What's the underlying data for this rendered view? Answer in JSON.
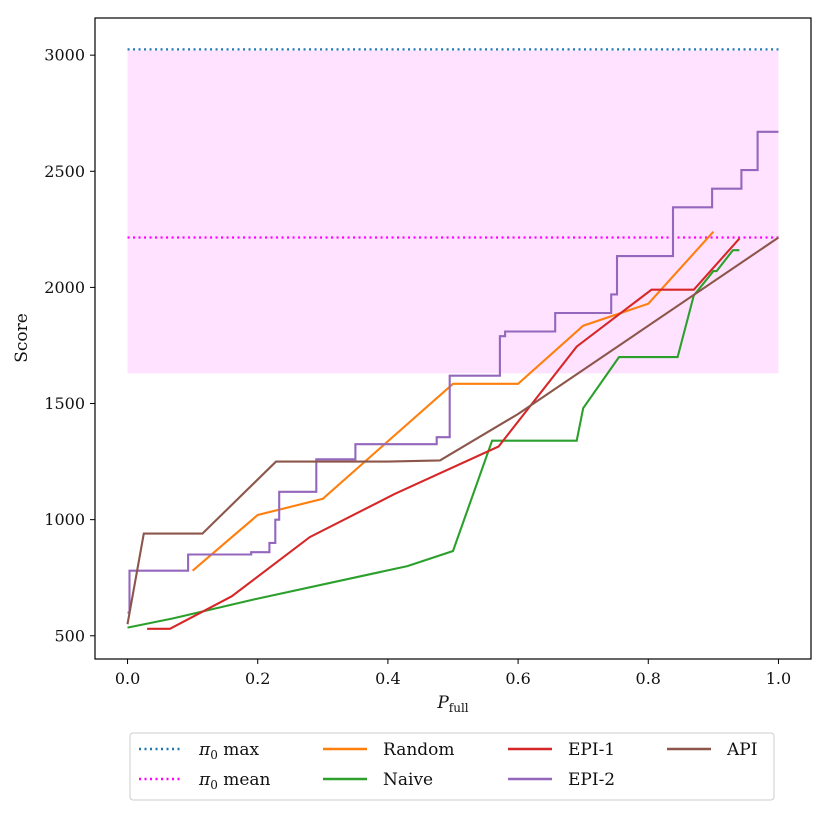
{
  "chart_data": {
    "type": "line",
    "title": "",
    "xlabel_main": "P",
    "xlabel_sub": "full",
    "ylabel": "Score",
    "xlim": [
      -0.05,
      1.05
    ],
    "ylim": [
      400,
      3160
    ],
    "x_ticks": [
      0.0,
      0.2,
      0.4,
      0.6,
      0.8,
      1.0
    ],
    "x_tick_labels": [
      "0.0",
      "0.2",
      "0.4",
      "0.6",
      "0.8",
      "1.0"
    ],
    "y_ticks": [
      500,
      1000,
      1500,
      2000,
      2500,
      3000
    ],
    "y_tick_labels": [
      "500",
      "1000",
      "1500",
      "2000",
      "2500",
      "3000"
    ],
    "grid": false,
    "legend_placement": "bottom-outside",
    "band": {
      "name": "pi0 range",
      "x": [
        0.0,
        1.0
      ],
      "y": [
        1630,
        3020
      ],
      "color": "#ffe2ff"
    },
    "hlines": [
      {
        "name": "π₀ max",
        "legend_main": "π",
        "legend_sub": "0",
        "legend_rest": " max",
        "y": 3025,
        "color": "#1f77b4",
        "style": "dotted"
      },
      {
        "name": "π₀ mean",
        "legend_main": "π",
        "legend_sub": "0",
        "legend_rest": " mean",
        "y": 2215,
        "color": "#ff00ff",
        "style": "dotted"
      }
    ],
    "series": [
      {
        "name": "Random",
        "color": "#ff7f0e",
        "x": [
          0.1,
          0.2,
          0.3,
          0.5,
          0.6,
          0.7,
          0.8,
          0.9
        ],
        "y": [
          780,
          1020,
          1090,
          1585,
          1585,
          1835,
          1930,
          2240
        ]
      },
      {
        "name": "Naive",
        "color": "#2ca02c",
        "x": [
          0.0,
          0.07,
          0.2,
          0.43,
          0.5,
          0.56,
          0.69,
          0.7,
          0.755,
          0.845,
          0.87,
          0.9,
          0.905,
          0.93,
          0.94
        ],
        "y": [
          535,
          575,
          660,
          800,
          865,
          1340,
          1340,
          1480,
          1700,
          1700,
          1965,
          2070,
          2070,
          2160,
          2160
        ]
      },
      {
        "name": "EPI-1",
        "color": "#d62728",
        "x": [
          0.03,
          0.065,
          0.16,
          0.28,
          0.41,
          0.57,
          0.69,
          0.805,
          0.87,
          0.94
        ],
        "y": [
          530,
          530,
          670,
          925,
          1110,
          1315,
          1745,
          1990,
          1990,
          2210
        ]
      },
      {
        "name": "EPI-2",
        "color": "#9467bd",
        "x": [
          0.0,
          0.003,
          0.003,
          0.093,
          0.093,
          0.19,
          0.19,
          0.218,
          0.218,
          0.227,
          0.227,
          0.233,
          0.233,
          0.237,
          0.237,
          0.29,
          0.29,
          0.35,
          0.35,
          0.45,
          0.45,
          0.475,
          0.475,
          0.495,
          0.495,
          0.572,
          0.572,
          0.58,
          0.58,
          0.657,
          0.657,
          0.743,
          0.743,
          0.752,
          0.752,
          0.762,
          0.762,
          0.838,
          0.838,
          0.898,
          0.898,
          0.943,
          0.943,
          0.968,
          0.968,
          1.0
        ],
        "y": [
          600,
          600,
          780,
          780,
          850,
          850,
          860,
          860,
          900,
          900,
          1000,
          1000,
          1120,
          1120,
          1120,
          1120,
          1260,
          1260,
          1325,
          1325,
          1325,
          1325,
          1355,
          1355,
          1620,
          1620,
          1790,
          1790,
          1810,
          1810,
          1890,
          1890,
          1970,
          1970,
          2135,
          2135,
          2135,
          2135,
          2345,
          2345,
          2425,
          2425,
          2505,
          2505,
          2670,
          2670
        ]
      },
      {
        "name": "API",
        "color": "#8c564b",
        "x": [
          0.0,
          0.025,
          0.115,
          0.228,
          0.4,
          0.48,
          0.6,
          1.0
        ],
        "y": [
          550,
          940,
          940,
          1250,
          1250,
          1255,
          1455,
          2215
        ]
      }
    ]
  }
}
